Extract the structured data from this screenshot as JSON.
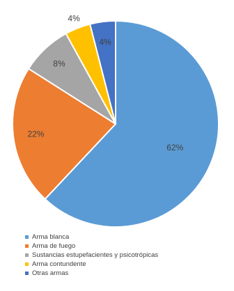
{
  "chart_data": {
    "type": "pie",
    "categories": [
      "Arma blanca",
      "Arma de fuego",
      "Sustancias estupefacientes y psicotrópicas",
      "Arma contundente",
      "Otras armas"
    ],
    "values": [
      62,
      22,
      8,
      4,
      4
    ],
    "value_labels": [
      "62%",
      "22%",
      "8%",
      "4%",
      "4%"
    ],
    "colors": [
      "#5b9bd5",
      "#ed7d31",
      "#a5a5a5",
      "#ffc000",
      "#4472c4"
    ],
    "title": "",
    "legend_position": "bottom"
  }
}
